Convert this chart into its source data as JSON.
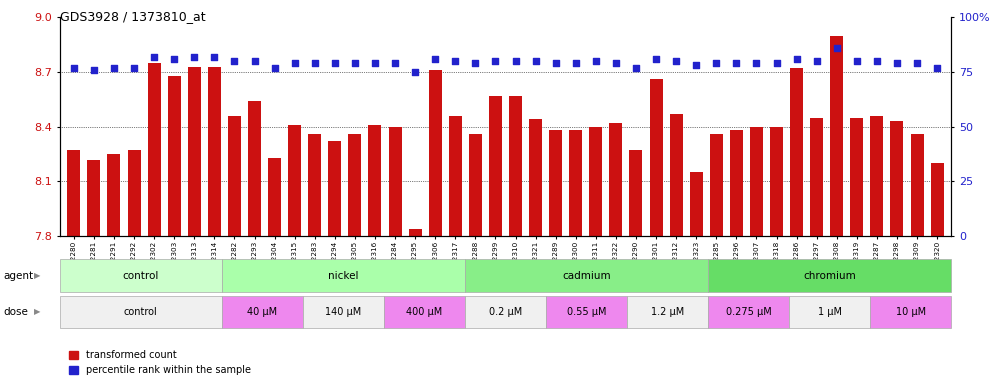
{
  "title": "GDS3928 / 1373810_at",
  "samples": [
    "GSM782280",
    "GSM782281",
    "GSM782291",
    "GSM782292",
    "GSM782302",
    "GSM782303",
    "GSM782313",
    "GSM782314",
    "GSM782282",
    "GSM782293",
    "GSM782304",
    "GSM782315",
    "GSM782283",
    "GSM782294",
    "GSM782305",
    "GSM782316",
    "GSM782284",
    "GSM782295",
    "GSM782306",
    "GSM782317",
    "GSM782288",
    "GSM782299",
    "GSM782310",
    "GSM782321",
    "GSM782289",
    "GSM782300",
    "GSM782311",
    "GSM782322",
    "GSM782290",
    "GSM782301",
    "GSM782312",
    "GSM782323",
    "GSM782285",
    "GSM782296",
    "GSM782307",
    "GSM782318",
    "GSM782286",
    "GSM782297",
    "GSM782308",
    "GSM782319",
    "GSM782287",
    "GSM782298",
    "GSM782309",
    "GSM782320"
  ],
  "bar_values": [
    8.27,
    8.22,
    8.25,
    8.27,
    8.75,
    8.68,
    8.73,
    8.73,
    8.46,
    8.54,
    8.23,
    8.41,
    8.36,
    8.32,
    8.36,
    8.41,
    8.4,
    7.84,
    8.71,
    8.46,
    8.36,
    8.57,
    8.57,
    8.44,
    8.38,
    8.38,
    8.4,
    8.42,
    8.27,
    8.66,
    8.47,
    8.15,
    8.36,
    8.38,
    8.4,
    8.4,
    8.72,
    8.45,
    8.9,
    8.45,
    8.46,
    8.43,
    8.36,
    8.2
  ],
  "percentile_values": [
    77,
    76,
    77,
    77,
    82,
    81,
    82,
    82,
    80,
    80,
    77,
    79,
    79,
    79,
    79,
    79,
    79,
    75,
    81,
    80,
    79,
    80,
    80,
    80,
    79,
    79,
    80,
    79,
    77,
    81,
    80,
    78,
    79,
    79,
    79,
    79,
    81,
    80,
    86,
    80,
    80,
    79,
    79,
    77
  ],
  "ylim_left": [
    7.8,
    9.0
  ],
  "ylim_right": [
    0,
    100
  ],
  "bar_color": "#cc1111",
  "dot_color": "#2222cc",
  "bg_color": "#ffffff",
  "yticks_left": [
    7.8,
    8.1,
    8.4,
    8.7,
    9.0
  ],
  "yticks_right": [
    0,
    25,
    50,
    75,
    100
  ],
  "agent_groups": [
    {
      "label": "control",
      "start": 0,
      "end": 8,
      "color": "#ccffcc"
    },
    {
      "label": "nickel",
      "start": 8,
      "end": 20,
      "color": "#aaffaa"
    },
    {
      "label": "cadmium",
      "start": 20,
      "end": 32,
      "color": "#88ee88"
    },
    {
      "label": "chromium",
      "start": 32,
      "end": 44,
      "color": "#66dd66"
    }
  ],
  "dose_groups": [
    {
      "label": "control",
      "start": 0,
      "end": 8,
      "color": "#f0f0f0"
    },
    {
      "label": "40 μM",
      "start": 8,
      "end": 12,
      "color": "#ee88ee"
    },
    {
      "label": "140 μM",
      "start": 12,
      "end": 16,
      "color": "#f0f0f0"
    },
    {
      "label": "400 μM",
      "start": 16,
      "end": 20,
      "color": "#ee88ee"
    },
    {
      "label": "0.2 μM",
      "start": 20,
      "end": 24,
      "color": "#f0f0f0"
    },
    {
      "label": "0.55 μM",
      "start": 24,
      "end": 28,
      "color": "#ee88ee"
    },
    {
      "label": "1.2 μM",
      "start": 28,
      "end": 32,
      "color": "#f0f0f0"
    },
    {
      "label": "0.275 μM",
      "start": 32,
      "end": 36,
      "color": "#ee88ee"
    },
    {
      "label": "1 μM",
      "start": 36,
      "end": 40,
      "color": "#f0f0f0"
    },
    {
      "label": "10 μM",
      "start": 40,
      "end": 44,
      "color": "#ee88ee"
    }
  ],
  "legend_items": [
    {
      "label": "transformed count",
      "color": "#cc1111"
    },
    {
      "label": "percentile rank within the sample",
      "color": "#2222cc"
    }
  ]
}
